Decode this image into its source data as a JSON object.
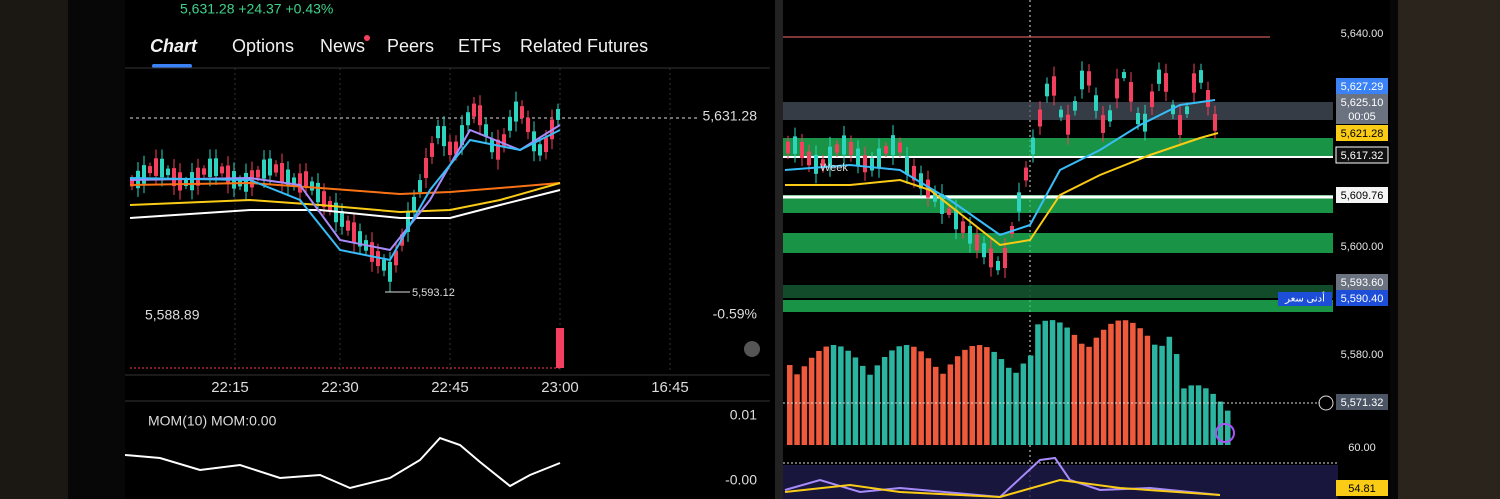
{
  "header": {
    "quote": "5,631.28 +24.37 +0.43%",
    "tabs": [
      "Chart",
      "Options",
      "News",
      "Peers",
      "ETFs",
      "Related Futures"
    ]
  },
  "left_chart": {
    "last_price": "5,631.28",
    "low_marker": "5,593.12",
    "open_price": "5,588.89",
    "change": "-0.59%",
    "x_labels": [
      "22:15",
      "22:30",
      "22:45",
      "23:00",
      "16:45"
    ],
    "indicator": {
      "title": "MOM(10) MOM:0.00",
      "top": "0.01",
      "bottom": "-0.00"
    }
  },
  "right_chart": {
    "week_label": "Week",
    "low_label": "أدنى سعر",
    "price_labels": [
      "5,640.00",
      "5,627.29",
      "5,625.10",
      "00:05",
      "5,621.28",
      "5,617.32",
      "5,609.76",
      "5,600.00",
      "5,593.60",
      "5,590.40",
      "5,580.00",
      "5,571.32",
      "60.00",
      "54.81"
    ]
  }
}
